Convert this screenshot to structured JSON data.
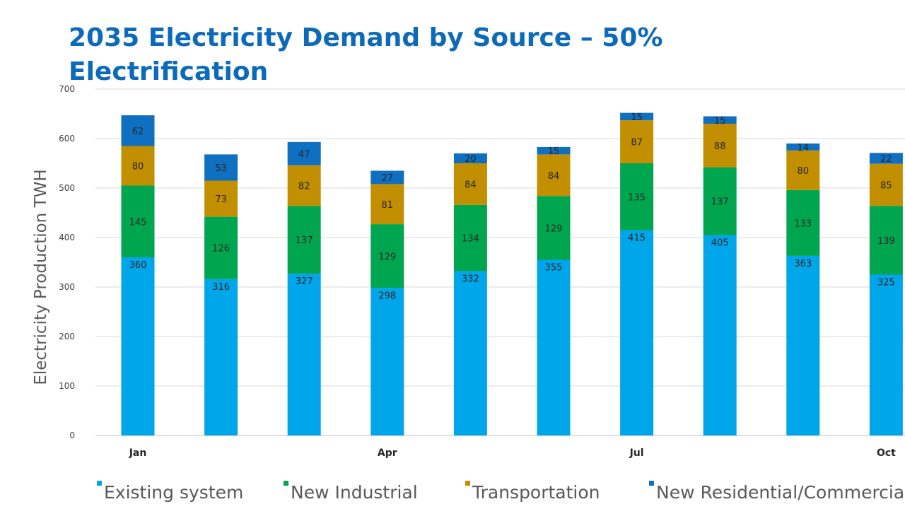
{
  "slide": {
    "title": "2035 Electricity Demand by Source – 50% Electrification"
  },
  "chart_data": {
    "type": "bar",
    "stacked": true,
    "categories": [
      "Jan",
      "",
      "",
      "Apr",
      "",
      "",
      "Jul",
      "",
      "",
      "Oct"
    ],
    "series": [
      {
        "name": "Existing system",
        "color": "#00a6ea",
        "values": [
          360,
          316,
          327,
          298,
          332,
          355,
          415,
          405,
          363,
          325
        ]
      },
      {
        "name": "New Industrial",
        "color": "#00a64f",
        "values": [
          145,
          126,
          137,
          129,
          134,
          129,
          135,
          137,
          133,
          139
        ]
      },
      {
        "name": "Transportation",
        "color": "#c28f00",
        "values": [
          80,
          73,
          82,
          81,
          84,
          84,
          87,
          88,
          80,
          85
        ]
      },
      {
        "name": "New Residential/Commercial",
        "color": "#0f6fc0",
        "values": [
          62,
          53,
          47,
          27,
          20,
          15,
          15,
          15,
          14,
          22
        ]
      }
    ],
    "xlabel": "",
    "ylabel": "Electricity Production TWH",
    "ylim": [
      0,
      700
    ],
    "yticks": [
      0,
      100,
      200,
      300,
      400,
      500,
      600,
      700
    ],
    "grid": true,
    "legend_position": "bottom"
  }
}
